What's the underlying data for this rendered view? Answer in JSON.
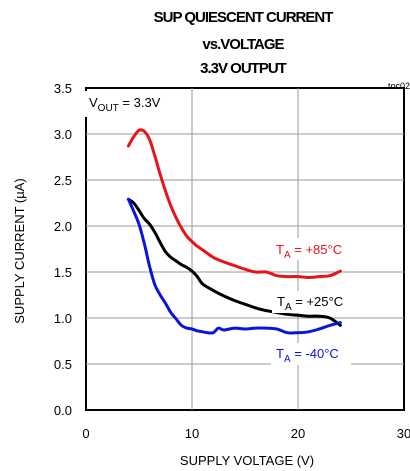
{
  "chart_data": {
    "type": "line",
    "title_lines": [
      "SUP QUIESCENT CURRENT",
      "vs.VOLTAGE",
      "3.3V OUTPUT"
    ],
    "code": "toc02",
    "xlabel": "SUPPLY VOLTAGE (V)",
    "ylabel": "SUPPLY CURRENT (µA)",
    "xlim": [
      0,
      30
    ],
    "ylim": [
      0,
      3.5
    ],
    "xticks": [
      "0",
      "10",
      "20",
      "30"
    ],
    "yticks": [
      "0.0",
      "0.5",
      "1.0",
      "1.5",
      "2.0",
      "2.5",
      "3.0",
      "3.5"
    ],
    "grid": true,
    "condition": {
      "main": "V",
      "sub": "OUT",
      "rest": " = 3.3V"
    },
    "series": [
      {
        "name": "TA = +85°C",
        "label": {
          "main": "T",
          "sub": "A",
          "rest": " = +85°C"
        },
        "color": "#e8141b",
        "x": [
          4.0,
          4.5,
          5.0,
          5.5,
          6.0,
          6.5,
          7.0,
          7.5,
          8.0,
          8.5,
          9.0,
          9.5,
          10.0,
          10.5,
          11.0,
          12.0,
          13.0,
          14.0,
          15.0,
          16.0,
          17.0,
          18.0,
          19.0,
          20.0,
          21.0,
          22.0,
          23.0,
          24.0
        ],
        "y": [
          2.87,
          2.97,
          3.04,
          3.03,
          2.94,
          2.76,
          2.56,
          2.38,
          2.22,
          2.09,
          1.98,
          1.89,
          1.83,
          1.78,
          1.74,
          1.66,
          1.61,
          1.57,
          1.53,
          1.5,
          1.5,
          1.46,
          1.45,
          1.45,
          1.44,
          1.45,
          1.46,
          1.51
        ]
      },
      {
        "name": "TA = +25°C",
        "label": {
          "main": "T",
          "sub": "A",
          "rest": " = +25°C"
        },
        "color": "#000000",
        "x": [
          4.0,
          4.5,
          5.0,
          5.5,
          6.0,
          6.5,
          7.0,
          7.5,
          8.0,
          8.5,
          9.0,
          9.5,
          10.0,
          10.5,
          11.0,
          12.0,
          13.0,
          14.0,
          15.0,
          16.0,
          17.0,
          18.0,
          19.0,
          20.0,
          21.0,
          22.0,
          23.0,
          24.0
        ],
        "y": [
          2.29,
          2.25,
          2.17,
          2.08,
          2.02,
          1.93,
          1.82,
          1.72,
          1.66,
          1.62,
          1.58,
          1.55,
          1.51,
          1.45,
          1.37,
          1.3,
          1.24,
          1.19,
          1.15,
          1.11,
          1.08,
          1.06,
          1.04,
          1.03,
          1.02,
          1.02,
          1.0,
          0.92
        ]
      },
      {
        "name": "TA = -40°C",
        "label": {
          "main": "T",
          "sub": "A",
          "rest": " = -40°C"
        },
        "color": "#0a14dc",
        "x": [
          4.0,
          4.5,
          5.0,
          5.5,
          6.0,
          6.5,
          7.0,
          7.5,
          8.0,
          8.5,
          9.0,
          9.5,
          10.0,
          10.5,
          11.0,
          11.5,
          12.0,
          12.5,
          13.0,
          14.0,
          15.0,
          16.0,
          17.0,
          18.0,
          19.0,
          20.0,
          21.0,
          22.0,
          23.0,
          24.0
        ],
        "y": [
          2.29,
          2.16,
          2.02,
          1.81,
          1.56,
          1.36,
          1.25,
          1.16,
          1.06,
          0.99,
          0.92,
          0.89,
          0.88,
          0.86,
          0.85,
          0.84,
          0.84,
          0.89,
          0.87,
          0.89,
          0.88,
          0.89,
          0.89,
          0.88,
          0.84,
          0.84,
          0.85,
          0.88,
          0.92,
          0.95
        ]
      }
    ]
  }
}
